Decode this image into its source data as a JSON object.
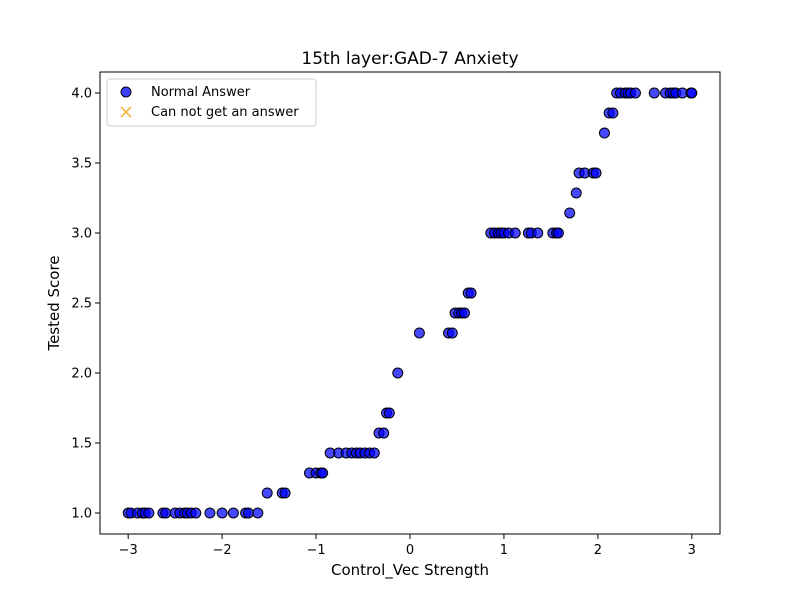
{
  "chart_data": {
    "type": "scatter",
    "title": "15th layer:GAD-7 Anxiety",
    "xlabel": "Control_Vec Strength",
    "ylabel": "Tested Score",
    "xlim": [
      -3.3,
      3.3
    ],
    "ylim": [
      0.85,
      4.15
    ],
    "xticks": [
      -3,
      -2,
      -1,
      0,
      1,
      2,
      3
    ],
    "xtick_labels": [
      "−3",
      "−2",
      "−1",
      "0",
      "1",
      "2",
      "3"
    ],
    "yticks": [
      1.0,
      1.5,
      2.0,
      2.5,
      3.0,
      3.5,
      4.0
    ],
    "ytick_labels": [
      "1.0",
      "1.5",
      "2.0",
      "2.5",
      "3.0",
      "3.5",
      "4.0"
    ],
    "grid": false,
    "legend_position": "top-left",
    "series": [
      {
        "name": "Normal Answer",
        "marker": "circle",
        "color": "#0000ff",
        "edge_color": "#000000",
        "x": [
          -3.0,
          -2.97,
          -2.9,
          -2.85,
          -2.82,
          -2.78,
          -2.63,
          -2.6,
          -2.5,
          -2.45,
          -2.4,
          -2.37,
          -2.33,
          -2.28,
          -2.13,
          -2.0,
          -1.88,
          -1.75,
          -1.72,
          -1.62,
          -1.52,
          -1.36,
          -1.33,
          -1.07,
          -1.0,
          -0.95,
          -0.93,
          -0.85,
          -0.76,
          -0.68,
          -0.62,
          -0.57,
          -0.53,
          -0.48,
          -0.43,
          -0.38,
          -0.33,
          -0.28,
          -0.25,
          -0.22,
          -0.13,
          0.1,
          0.41,
          0.45,
          0.48,
          0.52,
          0.55,
          0.58,
          0.62,
          0.65,
          0.86,
          0.9,
          0.94,
          0.97,
          1.0,
          1.05,
          1.12,
          1.26,
          1.29,
          1.36,
          1.52,
          1.56,
          1.58,
          1.7,
          1.77,
          1.8,
          1.86,
          1.95,
          1.98,
          2.07,
          2.12,
          2.16,
          2.2,
          2.24,
          2.29,
          2.32,
          2.35,
          2.4,
          2.6,
          2.72,
          2.77,
          2.8,
          2.83,
          2.9,
          2.99,
          3.0
        ],
        "y": [
          1.0,
          1.0,
          1.0,
          1.0,
          1.0,
          1.0,
          1.0,
          1.0,
          1.0,
          1.0,
          1.0,
          1.0,
          1.0,
          1.0,
          1.0,
          1.0,
          1.0,
          1.0,
          1.0,
          1.0,
          1.143,
          1.143,
          1.143,
          1.286,
          1.286,
          1.286,
          1.286,
          1.429,
          1.429,
          1.429,
          1.429,
          1.429,
          1.429,
          1.429,
          1.429,
          1.429,
          1.571,
          1.571,
          1.714,
          1.714,
          2.0,
          2.286,
          2.286,
          2.286,
          2.429,
          2.429,
          2.429,
          2.429,
          2.571,
          2.571,
          3.0,
          3.0,
          3.0,
          3.0,
          3.0,
          3.0,
          3.0,
          3.0,
          3.0,
          3.0,
          3.0,
          3.0,
          3.0,
          3.143,
          3.286,
          3.429,
          3.429,
          3.429,
          3.429,
          3.714,
          3.857,
          3.857,
          4.0,
          4.0,
          4.0,
          4.0,
          4.0,
          4.0,
          4.0,
          4.0,
          4.0,
          4.0,
          4.0,
          4.0,
          4.0,
          4.0
        ]
      },
      {
        "name": "Can not get an answer",
        "marker": "x",
        "color": "#f5b642",
        "x": [],
        "y": []
      }
    ]
  }
}
